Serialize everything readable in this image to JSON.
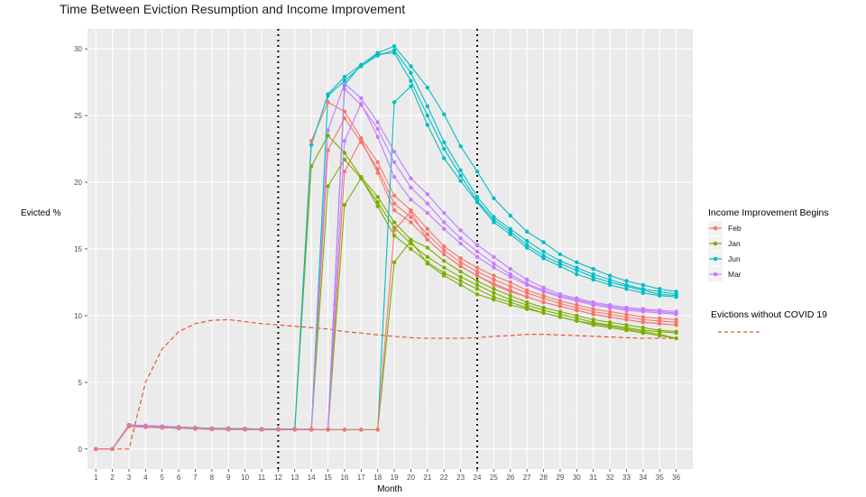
{
  "chart_data": {
    "type": "line",
    "title": "Time Between Eviction Resumption and Income Improvement",
    "xlabel": "Month",
    "ylabel": "Evicted %",
    "x": [
      1,
      2,
      3,
      4,
      5,
      6,
      7,
      8,
      9,
      10,
      11,
      12,
      13,
      14,
      15,
      16,
      17,
      18,
      19,
      20,
      21,
      22,
      23,
      24,
      25,
      26,
      27,
      28,
      29,
      30,
      31,
      32,
      33,
      34,
      35,
      36
    ],
    "xlim": [
      0.5,
      37
    ],
    "ylim": [
      -1.5,
      31.5
    ],
    "y_ticks": [
      0,
      5,
      10,
      15,
      20,
      25,
      30
    ],
    "grid": true,
    "vlines": [
      12,
      24
    ],
    "legend": {
      "title": "Income Improvement Begins",
      "position": "right",
      "items": [
        {
          "label": "Feb",
          "color": "#F8766D"
        },
        {
          "label": "Jan",
          "color": "#7CAE00"
        },
        {
          "label": "Jun",
          "color": "#00BFC4"
        },
        {
          "label": "Mar",
          "color": "#C77CFF"
        }
      ]
    },
    "reference_line": {
      "label": "Evictions without COVID 19",
      "color": "#E8543B",
      "style": "dashed",
      "values": [
        0,
        0,
        0,
        5,
        7.5,
        8.8,
        9.4,
        9.65,
        9.7,
        9.55,
        9.4,
        9.3,
        9.2,
        9.1,
        9.0,
        8.8,
        8.7,
        8.55,
        8.45,
        8.35,
        8.3,
        8.3,
        8.3,
        8.35,
        8.45,
        8.5,
        8.6,
        8.6,
        8.55,
        8.5,
        8.45,
        8.4,
        8.35,
        8.3,
        8.3,
        8.3
      ]
    },
    "series": [
      {
        "group": "Feb",
        "color": "#F8766D",
        "values": [
          0,
          0,
          1.8,
          1.75,
          1.7,
          1.65,
          1.6,
          1.55,
          1.55,
          1.52,
          1.5,
          1.5,
          1.5,
          23.1,
          26.0,
          25.3,
          23.3,
          21.5,
          19.0,
          17.9,
          16.5,
          15.2,
          14.3,
          13.6,
          13.0,
          12.5,
          11.9,
          11.5,
          11.1,
          10.8,
          10.5,
          10.3,
          10.1,
          9.9,
          9.8,
          9.7
        ]
      },
      {
        "group": "Feb",
        "color": "#F8766D",
        "values": [
          0,
          0,
          1.75,
          1.7,
          1.65,
          1.6,
          1.55,
          1.5,
          1.5,
          1.5,
          1.48,
          1.48,
          1.48,
          1.48,
          22.4,
          24.8,
          23.0,
          21.0,
          18.4,
          17.4,
          16.1,
          14.9,
          14.0,
          13.3,
          12.7,
          12.2,
          11.7,
          11.3,
          10.9,
          10.6,
          10.3,
          10.1,
          9.9,
          9.7,
          9.6,
          9.5
        ]
      },
      {
        "group": "Feb",
        "color": "#F8766D",
        "values": [
          0,
          0,
          1.7,
          1.68,
          1.62,
          1.58,
          1.53,
          1.5,
          1.48,
          1.47,
          1.46,
          1.46,
          1.46,
          1.46,
          1.46,
          20.8,
          23.2,
          20.7,
          17.9,
          17.0,
          15.7,
          14.6,
          13.7,
          13.0,
          12.4,
          11.9,
          11.4,
          11.0,
          10.7,
          10.4,
          10.1,
          9.9,
          9.7,
          9.5,
          9.4,
          9.3
        ]
      },
      {
        "group": "Jan",
        "color": "#7CAE00",
        "values": [
          0,
          0,
          1.8,
          1.75,
          1.7,
          1.65,
          1.6,
          1.55,
          1.55,
          1.52,
          1.5,
          1.5,
          1.5,
          21.2,
          23.5,
          22.2,
          20.4,
          18.9,
          17.0,
          15.7,
          15.1,
          14.1,
          13.3,
          12.6,
          12.0,
          11.5,
          11.0,
          10.6,
          10.3,
          10.0,
          9.7,
          9.5,
          9.3,
          9.1,
          8.9,
          8.8
        ]
      },
      {
        "group": "Jan",
        "color": "#7CAE00",
        "values": [
          0,
          0,
          1.75,
          1.7,
          1.65,
          1.6,
          1.55,
          1.5,
          1.5,
          1.5,
          1.48,
          1.48,
          1.48,
          1.48,
          19.7,
          21.7,
          20.3,
          18.5,
          16.6,
          15.4,
          14.4,
          13.6,
          12.9,
          12.3,
          11.7,
          11.2,
          10.8,
          10.4,
          10.1,
          9.8,
          9.5,
          9.3,
          9.1,
          8.9,
          8.8,
          8.7
        ]
      },
      {
        "group": "Jan",
        "color": "#7CAE00",
        "values": [
          0,
          0,
          1.7,
          1.68,
          1.62,
          1.58,
          1.53,
          1.5,
          1.48,
          1.47,
          1.46,
          1.46,
          1.46,
          1.46,
          1.46,
          18.3,
          20.3,
          18.2,
          16.0,
          15.0,
          14.0,
          13.2,
          12.6,
          12.0,
          11.4,
          11.0,
          10.6,
          10.2,
          9.9,
          9.6,
          9.4,
          9.2,
          9.0,
          8.8,
          8.6,
          8.3
        ]
      },
      {
        "group": "Jun",
        "color": "#00BFC4",
        "values": [
          0,
          0,
          1.8,
          1.75,
          1.7,
          1.65,
          1.6,
          1.55,
          1.55,
          1.52,
          1.5,
          1.5,
          1.5,
          22.8,
          26.6,
          27.9,
          28.8,
          29.7,
          30.2,
          28.7,
          27.1,
          25.1,
          22.7,
          20.8,
          18.8,
          17.5,
          16.3,
          15.5,
          14.6,
          14.0,
          13.5,
          13.0,
          12.6,
          12.3,
          12.0,
          11.8
        ]
      },
      {
        "group": "Jun",
        "color": "#00BFC4",
        "values": [
          0,
          0,
          1.78,
          1.73,
          1.68,
          1.63,
          1.58,
          1.53,
          1.52,
          1.5,
          1.48,
          1.48,
          1.48,
          1.48,
          26.5,
          27.6,
          28.7,
          29.5,
          29.9,
          28.2,
          25.7,
          23.0,
          20.9,
          18.9,
          17.4,
          16.5,
          15.6,
          14.8,
          14.1,
          13.6,
          13.1,
          12.7,
          12.3,
          12.0,
          11.8,
          11.6
        ]
      },
      {
        "group": "Jun",
        "color": "#00BFC4",
        "values": [
          0,
          0,
          1.72,
          1.68,
          1.64,
          1.6,
          1.55,
          1.5,
          1.5,
          1.48,
          1.47,
          1.47,
          1.47,
          1.47,
          1.47,
          27.3,
          28.8,
          29.6,
          29.7,
          27.6,
          25.0,
          22.5,
          20.5,
          18.6,
          17.2,
          16.3,
          15.3,
          14.5,
          13.9,
          13.4,
          12.9,
          12.5,
          12.2,
          11.9,
          11.6,
          11.5
        ]
      },
      {
        "group": "Jun",
        "color": "#00BFC4",
        "values": [
          0,
          0,
          1.7,
          1.65,
          1.6,
          1.56,
          1.52,
          1.49,
          1.47,
          1.46,
          1.45,
          1.45,
          1.45,
          1.45,
          1.45,
          1.45,
          1.45,
          1.45,
          26.0,
          27.2,
          24.3,
          21.8,
          20.1,
          18.5,
          17.0,
          16.1,
          15.1,
          14.3,
          13.7,
          13.1,
          12.7,
          12.3,
          12.0,
          11.7,
          11.5,
          11.4
        ]
      },
      {
        "group": "Jan",
        "color": "#7CAE00",
        "values": [
          0,
          0,
          1.7,
          1.65,
          1.6,
          1.56,
          1.52,
          1.49,
          1.47,
          1.46,
          1.45,
          1.45,
          1.45,
          1.45,
          1.45,
          1.45,
          1.45,
          1.45,
          14.0,
          15.6,
          13.9,
          13.0,
          12.3,
          11.6,
          11.2,
          10.8,
          10.5,
          10.2,
          9.9,
          9.6,
          9.3,
          9.1,
          8.9,
          8.7,
          8.5,
          8.3
        ]
      },
      {
        "group": "Mar",
        "color": "#C77CFF",
        "values": [
          0,
          0,
          1.78,
          1.73,
          1.68,
          1.63,
          1.58,
          1.53,
          1.52,
          1.5,
          1.48,
          1.48,
          1.48,
          1.48,
          23.9,
          27.4,
          26.3,
          24.5,
          22.3,
          20.3,
          19.1,
          17.7,
          16.4,
          15.3,
          14.4,
          13.5,
          12.7,
          12.1,
          11.6,
          11.3,
          11.0,
          10.8,
          10.6,
          10.5,
          10.4,
          10.3
        ]
      },
      {
        "group": "Mar",
        "color": "#C77CFF",
        "values": [
          0,
          0,
          1.72,
          1.68,
          1.64,
          1.6,
          1.55,
          1.5,
          1.5,
          1.48,
          1.47,
          1.47,
          1.47,
          1.47,
          1.47,
          27.0,
          25.8,
          24.0,
          21.5,
          19.6,
          18.4,
          17.0,
          15.8,
          14.8,
          13.9,
          13.1,
          12.4,
          11.9,
          11.5,
          11.2,
          10.9,
          10.7,
          10.5,
          10.4,
          10.3,
          10.2
        ]
      },
      {
        "group": "Mar",
        "color": "#C77CFF",
        "values": [
          0,
          0,
          1.7,
          1.65,
          1.6,
          1.56,
          1.52,
          1.49,
          1.47,
          1.46,
          1.45,
          1.45,
          1.45,
          1.45,
          1.45,
          23.1,
          25.9,
          23.4,
          20.4,
          18.7,
          17.7,
          16.5,
          15.4,
          14.4,
          13.6,
          12.9,
          12.3,
          11.8,
          11.4,
          11.1,
          10.8,
          10.6,
          10.4,
          10.3,
          10.2,
          10.1
        ]
      },
      {
        "group": "Feb",
        "color": "#F8766D",
        "values": [
          0,
          0,
          1.7,
          1.65,
          1.6,
          1.56,
          1.52,
          1.49,
          1.47,
          1.46,
          1.45,
          1.45,
          1.45,
          1.45,
          1.45,
          1.45,
          1.45,
          1.45,
          16.4,
          17.8,
          15.7,
          14.6,
          13.7,
          13.0,
          12.3,
          11.8,
          11.4,
          11.0,
          10.7,
          10.4,
          10.1,
          9.9,
          9.7,
          9.5,
          9.4,
          9.3
        ]
      }
    ]
  }
}
